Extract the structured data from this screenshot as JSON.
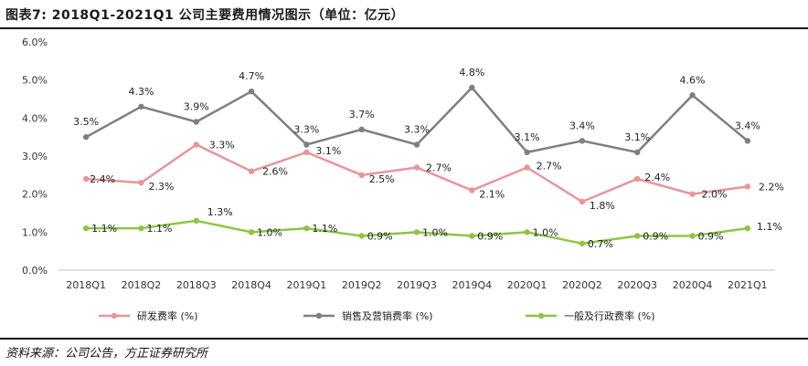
{
  "header": {
    "title": "图表7:  2018Q1-2021Q1 公司主要费用情况图示（单位：亿元）"
  },
  "footer": {
    "source": "资料来源：公司公告，方正证券研究所"
  },
  "chart_data": {
    "type": "line",
    "categories": [
      "2018Q1",
      "2018Q2",
      "2018Q3",
      "2018Q4",
      "2019Q1",
      "2019Q2",
      "2019Q3",
      "2019Q4",
      "2020Q1",
      "2020Q2",
      "2020Q3",
      "2020Q4",
      "2021Q1"
    ],
    "ylim": [
      0,
      6
    ],
    "yticks": [
      "0.0%",
      "1.0%",
      "2.0%",
      "3.0%",
      "4.0%",
      "5.0%",
      "6.0%"
    ],
    "grid": false,
    "legend_position": "bottom",
    "series": [
      {
        "name": "研发费率 (%)",
        "color": "#e8959a",
        "values": [
          2.4,
          2.3,
          3.3,
          2.6,
          3.1,
          2.5,
          2.7,
          2.1,
          2.7,
          1.8,
          2.4,
          2.0,
          2.2
        ],
        "labels": [
          "2.4%",
          "2.3%",
          "3.3%",
          "2.6%",
          "3.1%",
          "2.5%",
          "2.7%",
          "2.1%",
          "2.7%",
          "1.8%",
          "2.4%",
          "2.0%",
          "2.2%"
        ]
      },
      {
        "name": "销售及营销费率 (%)",
        "color": "#7f7f7f",
        "values": [
          3.5,
          4.3,
          3.9,
          4.7,
          3.3,
          3.7,
          3.3,
          4.8,
          3.1,
          3.4,
          3.1,
          4.6,
          3.4
        ],
        "labels": [
          "3.5%",
          "4.3%",
          "3.9%",
          "4.7%",
          "3.3%",
          "3.7%",
          "3.3%",
          "4.8%",
          "3.1%",
          "3.4%",
          "3.1%",
          "4.6%",
          "3.4%"
        ]
      },
      {
        "name": "一般及行政费率 (%)",
        "color": "#8dc63f",
        "values": [
          1.1,
          1.1,
          1.3,
          1.0,
          1.1,
          0.9,
          1.0,
          0.9,
          1.0,
          0.7,
          0.9,
          0.9,
          1.1
        ],
        "labels": [
          "1.1%",
          "1.1%",
          "1.3%",
          "1.0%",
          "1.1%",
          "0.9%",
          "1.0%",
          "0.9%",
          "1.0%",
          "0.7%",
          "0.9%",
          "0.9%",
          "1.1%"
        ]
      }
    ]
  }
}
